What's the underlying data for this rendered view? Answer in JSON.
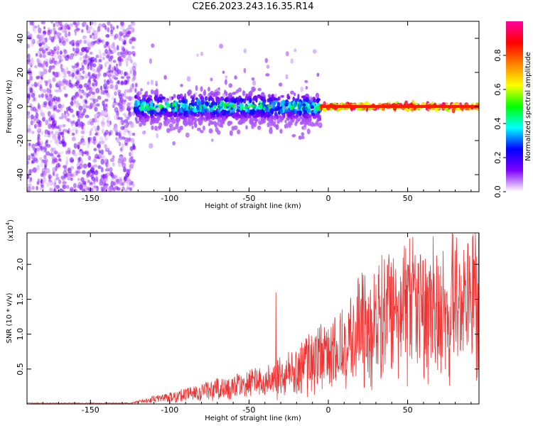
{
  "title": "C2E6.2023.243.16.35.R14",
  "chart_data": [
    {
      "type": "heatmap",
      "title": "C2E6.2023.243.16.35.R14",
      "xlabel": "Height of straight line (km)",
      "ylabel": "Frequency (Hz)",
      "xlim": [
        -190,
        95
      ],
      "ylim": [
        -50,
        50
      ],
      "x_ticks": [
        "-150",
        "-100",
        "-50",
        "0",
        "50"
      ],
      "y_ticks": [
        "-40",
        "-20",
        "0",
        "20",
        "40"
      ],
      "colorbar": {
        "label": "Normalized spectral amplitude",
        "range": [
          0,
          1
        ],
        "ticks": [
          "0.0",
          "0.2",
          "0.4",
          "0.6",
          "0.8"
        ],
        "colormap": [
          "#ffffff",
          "#7f00ff",
          "#0000ff",
          "#00ffff",
          "#00ff00",
          "#ffff00",
          "#ff8000",
          "#ff0000",
          "#ff00a0"
        ]
      },
      "regions": [
        {
          "x_range": [
            -190,
            -122
          ],
          "freq_spread": [
            -50,
            50
          ],
          "amplitude": 0.08
        },
        {
          "x_range": [
            -122,
            -5
          ],
          "freq_spread": [
            -12,
            8
          ],
          "amplitude": 0.25
        },
        {
          "x_range": [
            -5,
            95
          ],
          "freq_spread": [
            -2,
            2
          ],
          "amplitude": 0.9
        }
      ]
    },
    {
      "type": "line",
      "xlabel": "Height of straight line (km)",
      "ylabel": "SNR (10 * v/v)",
      "y_multiplier": "(x10",
      "y_multiplier_exp": "4",
      "xlim": [
        -190,
        95
      ],
      "ylim": [
        0,
        2.45
      ],
      "x_ticks": [
        "-150",
        "-100",
        "-50",
        "0",
        "50"
      ],
      "y_ticks": [
        "0.5",
        "1.0",
        "1.5",
        "2.0"
      ],
      "series": [
        {
          "color": "#ee3333",
          "trend_x": [
            -190,
            -125,
            -115,
            -100,
            -80,
            -60,
            -40,
            -20,
            -10,
            0,
            10,
            20,
            30,
            40,
            50,
            60,
            70,
            80,
            90,
            95
          ],
          "trend_y": [
            0.01,
            0.01,
            0.05,
            0.1,
            0.18,
            0.24,
            0.33,
            0.48,
            0.62,
            0.72,
            0.88,
            1.05,
            1.15,
            1.28,
            1.32,
            1.36,
            1.4,
            1.42,
            1.45,
            1.45
          ],
          "peaks_x": [
            -33,
            38,
            50,
            70,
            88,
            91
          ],
          "peaks_y": [
            1.6,
            2.03,
            2.0,
            1.85,
            2.3,
            2.4
          ]
        }
      ]
    }
  ]
}
